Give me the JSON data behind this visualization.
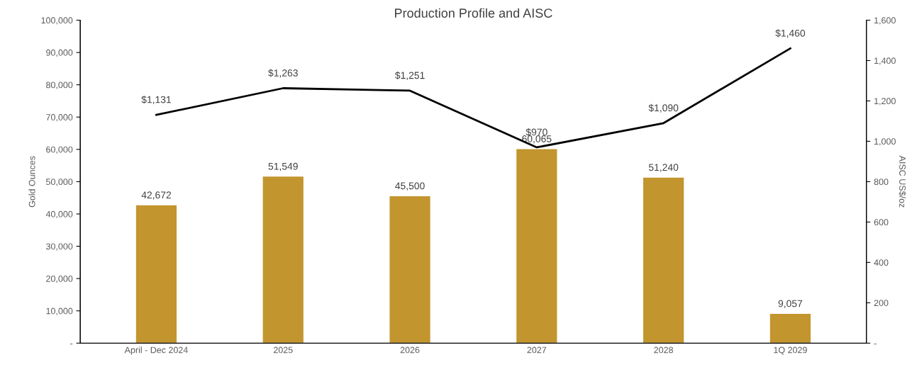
{
  "chart_data": {
    "type": "bar",
    "title": "Production Profile and AISC",
    "ylabel": "Gold Ounces",
    "y2label": "AISC US$/oz",
    "categories": [
      "April - Dec 2024",
      "2025",
      "2026",
      "2027",
      "2028",
      "1Q 2029"
    ],
    "series": [
      {
        "color": "#c3952e",
        "values": [
          42672,
          51549,
          45500,
          60065,
          51240,
          9057
        ],
        "value_labels": [
          "42,672",
          "51,549",
          "45,500",
          "60,065",
          "51,240",
          "9,057"
        ]
      },
      {
        "type": "line",
        "axis": "y2",
        "color": "#000000",
        "values": [
          1131,
          1263,
          1251,
          970,
          1090,
          1460
        ],
        "value_labels": [
          "$1,131",
          "$1,263",
          "$1,251",
          "$970",
          "$1,090",
          "$1,460"
        ]
      }
    ],
    "ylim": [
      0,
      100000
    ],
    "yticks": [
      {
        "value": 0,
        "label": "-"
      },
      {
        "value": 10000,
        "label": "10,000"
      },
      {
        "value": 20000,
        "label": "20,000"
      },
      {
        "value": 30000,
        "label": "30,000"
      },
      {
        "value": 40000,
        "label": "40,000"
      },
      {
        "value": 50000,
        "label": "50,000"
      },
      {
        "value": 60000,
        "label": "60,000"
      },
      {
        "value": 70000,
        "label": "70,000"
      },
      {
        "value": 80000,
        "label": "80,000"
      },
      {
        "value": 90000,
        "label": "90,000"
      },
      {
        "value": 100000,
        "label": "100,000"
      }
    ],
    "y2lim": [
      0,
      1600
    ],
    "y2ticks": [
      {
        "value": 0,
        "label": "-"
      },
      200,
      400,
      600,
      800,
      {
        "value": 1000,
        "label": "1,000"
      },
      {
        "value": 1200,
        "label": "1,200"
      },
      {
        "value": 1400,
        "label": "1,400"
      },
      {
        "value": 1600,
        "label": "1,600"
      }
    ],
    "grid": false,
    "legend": false
  }
}
